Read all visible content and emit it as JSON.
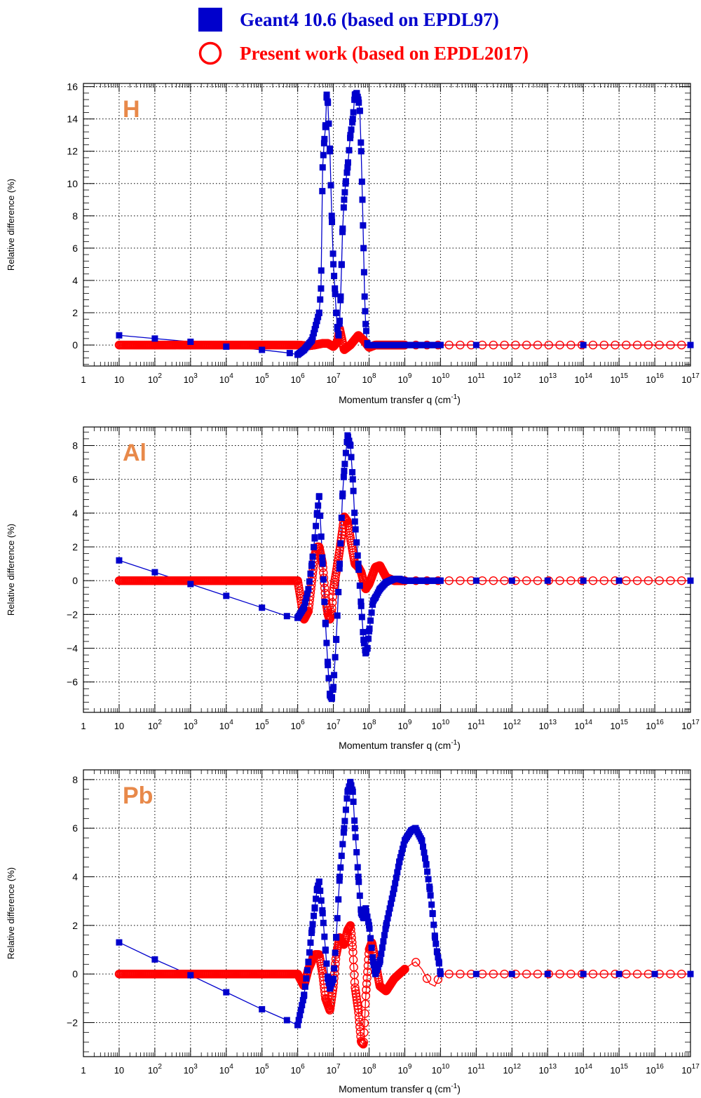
{
  "legend": {
    "items": [
      {
        "label": "Geant4 10.6 (based on EPDL97)",
        "color": "#0000cc",
        "marker": "filled-square"
      },
      {
        "label": "Present work (based on EPDL2017)",
        "color": "#ff0000",
        "marker": "open-circle"
      }
    ]
  },
  "colors": {
    "geant4": "#0000cc",
    "present": "#ff0000",
    "panel_label": "#e8894a"
  },
  "chart_data": [
    {
      "type": "line",
      "panel_label": "H",
      "xlabel": "Momentum transfer q (cm",
      "xlabel_sup": "-1",
      "xlabel_end": ")",
      "ylabel": "Relative difference (%)",
      "x_scale": "log",
      "xlim": [
        1,
        1e+17
      ],
      "ylim": [
        -1.3,
        16.2
      ],
      "yticks": [
        0,
        2,
        4,
        6,
        8,
        10,
        12,
        14,
        16
      ],
      "ytick_labels": [
        "0",
        "2",
        "4",
        "6",
        "8",
        "10",
        "12",
        "14",
        "16"
      ],
      "xtick_labels": [
        "1",
        "10",
        "10^2",
        "10^3",
        "10^4",
        "10^5",
        "10^6",
        "10^7",
        "10^8",
        "10^9",
        "10^10",
        "10^11",
        "10^12",
        "10^13",
        "10^14",
        "10^15",
        "10^16",
        "10^17"
      ],
      "grid": true,
      "series": [
        {
          "name": "Geant4 10.6 (based on EPDL97)",
          "x": [
            10,
            100,
            1000,
            10000,
            100000,
            600000,
            1000000,
            1500000,
            2500000,
            4000000,
            4500000,
            5000000,
            5500000,
            6000000,
            6500000,
            7000000,
            8000000,
            9000000,
            10000000,
            11000000,
            12000000,
            13000000,
            14000000,
            15000000,
            16000000,
            17000000,
            18000000,
            20000000,
            22000000,
            25000000,
            30000000,
            35000000,
            40000000,
            45000000,
            50000000,
            55000000,
            60000000,
            65000000,
            70000000,
            75000000,
            80000000,
            90000000,
            100000000,
            120000000,
            140000000,
            160000000,
            200000000,
            300000000,
            500000000,
            1000000000,
            2000000000,
            5000000000,
            10000000000,
            100000000000,
            100000000000000,
            100000000000000000
          ],
          "y": [
            0.6,
            0.4,
            0.2,
            -0.1,
            -0.3,
            -0.5,
            -0.6,
            -0.3,
            0.3,
            2.0,
            3.5,
            11.0,
            12.5,
            13.5,
            15.5,
            15.0,
            12.0,
            8.0,
            5.0,
            3.5,
            2.0,
            1.0,
            0.6,
            1.5,
            3.0,
            5.0,
            7.0,
            9.0,
            10.0,
            11.0,
            13.0,
            14.0,
            15.5,
            15.6,
            15.2,
            14.5,
            12.0,
            9.0,
            6.0,
            3.0,
            1.3,
            0.0,
            0.0,
            0.0,
            0.0,
            0.0,
            0.0,
            0.0,
            0.0,
            0.0,
            0.0,
            0.0,
            0.0,
            0.0,
            0.0,
            0.0
          ]
        },
        {
          "name": "Present work (based on EPDL2017)",
          "x": [
            10,
            100,
            1000,
            10000,
            100000,
            1000000,
            2000000,
            3000000,
            5000000,
            7000000,
            10000000,
            13000000,
            15000000,
            20000000,
            30000000,
            50000000,
            70000000,
            100000000,
            150000000,
            300000000,
            1000000000,
            10000000000,
            100000000000,
            1000000000000,
            10000000000000,
            100000000000000,
            1000000000000000,
            10000000000000000,
            100000000000000000
          ],
          "y": [
            0.0,
            0.0,
            0.0,
            0.0,
            0.0,
            0.0,
            -0.05,
            0.0,
            0.1,
            0.1,
            -0.1,
            0.2,
            1.0,
            -0.3,
            0.0,
            0.6,
            0.3,
            -0.15,
            0.0,
            0.0,
            0.0,
            0.0,
            0.0,
            0.0,
            0.0,
            0.0,
            0.0,
            0.0,
            0.0
          ]
        }
      ]
    },
    {
      "type": "line",
      "panel_label": "Al",
      "xlabel": "Momentum transfer q (cm",
      "xlabel_sup": "-1",
      "xlabel_end": ")",
      "ylabel": "Relative difference (%)",
      "x_scale": "log",
      "xlim": [
        1,
        1e+17
      ],
      "ylim": [
        -7.8,
        9.1
      ],
      "yticks": [
        -6,
        -4,
        -2,
        0,
        2,
        4,
        6,
        8
      ],
      "ytick_labels": [
        "−6",
        "−4",
        "−2",
        "0",
        "2",
        "4",
        "6",
        "8"
      ],
      "xtick_labels": [
        "1",
        "10",
        "10^2",
        "10^3",
        "10^4",
        "10^5",
        "10^6",
        "10^7",
        "10^8",
        "10^9",
        "10^10",
        "10^11",
        "10^12",
        "10^13",
        "10^14",
        "10^15",
        "10^16",
        "10^17"
      ],
      "grid": true,
      "series": [
        {
          "name": "Geant4 10.6 (based on EPDL97)",
          "x": [
            10,
            100,
            1000,
            10000,
            100000,
            500000,
            1000000,
            1500000,
            2000000,
            2500000,
            3000000,
            3500000,
            4000000,
            5000000,
            6000000,
            7000000,
            8000000,
            9000000,
            10000000,
            12000000,
            15000000,
            18000000,
            20000000,
            25000000,
            30000000,
            35000000,
            40000000,
            50000000,
            60000000,
            70000000,
            80000000,
            90000000,
            100000000,
            130000000,
            150000000,
            200000000,
            300000000,
            500000000,
            700000000,
            1000000000,
            2000000000,
            10000000000,
            100000000000,
            1000000000000,
            10000000000000,
            100000000000000,
            1000000000000000,
            100000000000000000
          ],
          "y": [
            1.2,
            0.5,
            -0.2,
            -0.9,
            -1.6,
            -2.1,
            -2.2,
            -1.6,
            -0.5,
            1.0,
            2.5,
            4.0,
            5.0,
            1.0,
            -2.5,
            -5.0,
            -6.8,
            -7.0,
            -6.3,
            -3.5,
            1.0,
            5.0,
            6.5,
            8.6,
            8.0,
            6.0,
            3.5,
            1.0,
            -1.5,
            -3.5,
            -4.3,
            -4.0,
            -3.0,
            -1.2,
            -1.0,
            -0.5,
            -0.1,
            0.1,
            0.1,
            0.0,
            0.0,
            0.0,
            0.0,
            0.0,
            0.0,
            0.0,
            0.0,
            0.0
          ]
        },
        {
          "name": "Present work (based on EPDL2017)",
          "x": [
            10,
            100,
            1000,
            10000,
            100000,
            1000000,
            1200000,
            1500000,
            2000000,
            2500000,
            3000000,
            3500000,
            4000000,
            5000000,
            6000000,
            7000000,
            8000000,
            9000000,
            10000000,
            12000000,
            15000000,
            18000000,
            20000000,
            25000000,
            30000000,
            40000000,
            50000000,
            60000000,
            80000000,
            100000000,
            150000000,
            200000000,
            300000000,
            500000000,
            1000000000,
            10000000000,
            100000000000,
            1000000000000,
            10000000000000,
            100000000000000,
            1000000000000000,
            10000000000000000,
            100000000000000000
          ],
          "y": [
            0.0,
            0.0,
            0.0,
            0.0,
            0.0,
            0.0,
            -1.0,
            -2.3,
            -1.8,
            0.0,
            1.5,
            2.0,
            2.0,
            1.0,
            -1.0,
            -2.0,
            -2.3,
            -1.8,
            -0.5,
            0.5,
            1.8,
            3.0,
            3.8,
            3.5,
            2.5,
            1.0,
            0.8,
            0.5,
            -0.5,
            -0.2,
            0.8,
            0.9,
            0.2,
            0.0,
            0.0,
            0.0,
            0.0,
            0.0,
            0.0,
            0.0,
            0.0,
            0.0,
            0.0
          ]
        }
      ]
    },
    {
      "type": "line",
      "panel_label": "Pb",
      "xlabel": "Momentum transfer q (cm",
      "xlabel_sup": "-1",
      "xlabel_end": ")",
      "ylabel": "Relative difference (%)",
      "x_scale": "log",
      "xlim": [
        1,
        1e+17
      ],
      "ylim": [
        -3.4,
        8.4
      ],
      "yticks": [
        -2,
        0,
        2,
        4,
        6,
        8
      ],
      "ytick_labels": [
        "−2",
        "0",
        "2",
        "4",
        "6",
        "8"
      ],
      "xtick_labels": [
        "1",
        "10",
        "10^2",
        "10^3",
        "10^4",
        "10^5",
        "10^6",
        "10^7",
        "10^8",
        "10^9",
        "10^10",
        "10^11",
        "10^12",
        "10^13",
        "10^14",
        "10^15",
        "10^16",
        "10^17"
      ],
      "grid": true,
      "series": [
        {
          "name": "Geant4 10.6 (based on EPDL97)",
          "x": [
            10,
            100,
            1000,
            10000,
            100000,
            500000,
            1000000,
            1500000,
            2000000,
            2500000,
            3000000,
            3500000,
            4000000,
            5000000,
            6000000,
            7000000,
            8000000,
            10000000,
            12000000,
            15000000,
            20000000,
            25000000,
            30000000,
            35000000,
            40000000,
            50000000,
            60000000,
            70000000,
            80000000,
            100000000,
            130000000,
            150000000,
            200000000,
            300000000,
            500000000,
            700000000,
            1000000000,
            1500000000,
            2000000000,
            3000000000,
            4000000000,
            5000000000,
            6000000000,
            7000000000,
            8000000000,
            9000000000,
            10000000000,
            100000000000,
            1000000000000,
            10000000000000,
            100000000000000,
            1000000000000000,
            10000000000000000,
            100000000000000000
          ],
          "y": [
            1.3,
            0.6,
            -0.05,
            -0.75,
            -1.45,
            -1.9,
            -2.1,
            -0.9,
            0.5,
            1.8,
            2.7,
            3.5,
            3.8,
            2.5,
            1.0,
            -0.2,
            -0.6,
            -0.2,
            1.5,
            4.0,
            6.0,
            7.5,
            7.9,
            7.5,
            6.0,
            4.0,
            2.5,
            2.3,
            2.7,
            2.0,
            0.5,
            0.0,
            0.5,
            2.0,
            3.5,
            4.6,
            5.5,
            5.9,
            6.0,
            5.5,
            4.5,
            3.5,
            2.5,
            1.5,
            0.9,
            0.5,
            0.0,
            0.0,
            0.0,
            0.0,
            0.0,
            0.0,
            0.0,
            0.0
          ]
        },
        {
          "name": "Present work (based on EPDL2017)",
          "x": [
            10,
            100,
            1000,
            10000,
            100000,
            1000000,
            1500000,
            2000000,
            3000000,
            4000000,
            5000000,
            6000000,
            8000000,
            10000000,
            12000000,
            15000000,
            20000000,
            25000000,
            30000000,
            35000000,
            40000000,
            50000000,
            60000000,
            70000000,
            80000000,
            100000000,
            120000000,
            150000000,
            200000000,
            300000000,
            500000000,
            700000000,
            1000000000,
            1500000000,
            2000000000,
            3000000000,
            5000000000,
            7000000000,
            10000000000,
            100000000000,
            1000000000000,
            10000000000000,
            100000000000000,
            1000000000000000,
            10000000000000000,
            100000000000000000
          ],
          "y": [
            0.0,
            0.0,
            0.0,
            0.0,
            0.0,
            0.0,
            -0.5,
            0.2,
            0.8,
            0.8,
            0.0,
            -1.0,
            -1.5,
            -0.5,
            0.8,
            1.5,
            1.2,
            1.8,
            2.0,
            1.0,
            -0.5,
            -1.5,
            -2.8,
            -2.9,
            -1.0,
            1.0,
            1.3,
            0.5,
            -0.5,
            -0.7,
            -0.2,
            0.0,
            0.2,
            0.4,
            0.5,
            0.2,
            -0.4,
            -0.5,
            0.0,
            0.0,
            0.0,
            0.0,
            0.0,
            0.0,
            0.0,
            0.0
          ]
        }
      ]
    }
  ]
}
